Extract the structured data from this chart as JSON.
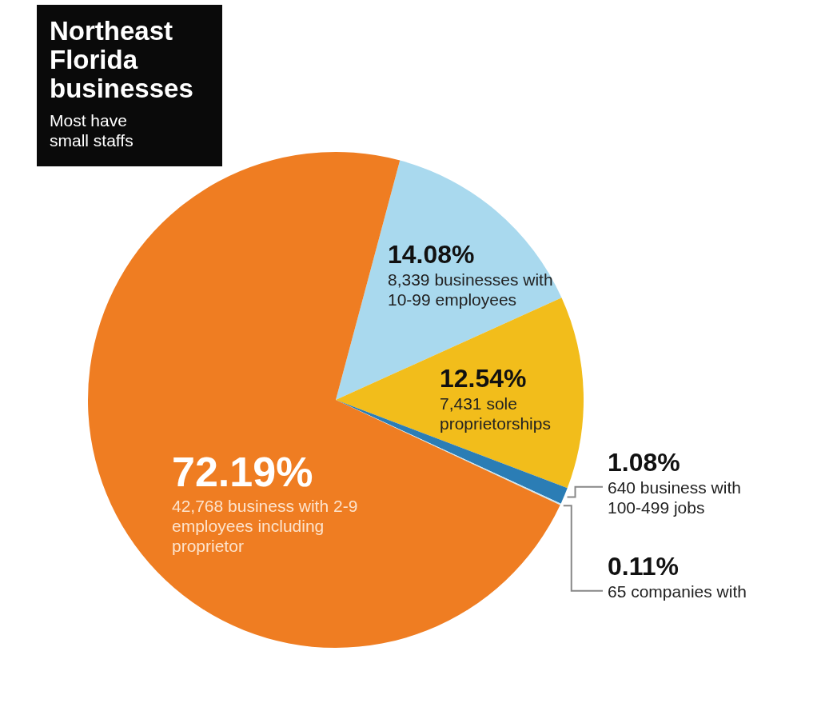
{
  "chart_data": {
    "type": "pie",
    "title": "Northeast Florida businesses",
    "subtitle": "Most have small staffs",
    "categories": [
      "8,339 businesses with 10-99 employees",
      "7,431 sole proprietorships",
      "640 business with 100-499 jobs",
      "65 companies with",
      "42,768 business with 2-9 employees including proprietor"
    ],
    "values": [
      14.08,
      12.54,
      1.08,
      0.11,
      72.19
    ],
    "colors": [
      "#a9d9ee",
      "#f2bd1b",
      "#2b7db5",
      "#cfe7f0",
      "#ef7d22"
    ],
    "value_labels": [
      "14.08%",
      "12.54%",
      "1.08%",
      "0.11%",
      "72.19%"
    ]
  }
}
